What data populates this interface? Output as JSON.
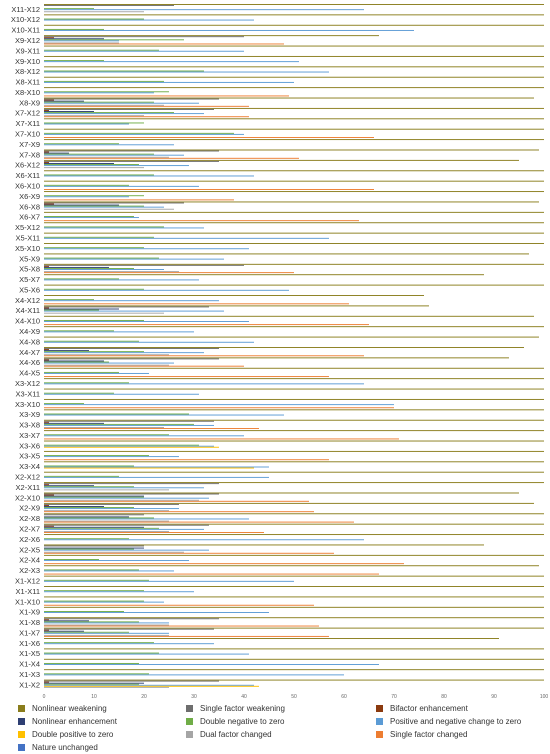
{
  "chart_data": {
    "type": "bar",
    "orientation": "horizontal",
    "xlim": [
      0,
      100
    ],
    "xticks": [
      "0",
      "10",
      "20",
      "30",
      "40",
      "50",
      "60",
      "70",
      "80",
      "90",
      "100"
    ],
    "grid": false,
    "legend_position": "bottom",
    "categories": [
      "X11-X12",
      "X10-X12",
      "X10-X11",
      "X9-X12",
      "X9-X11",
      "X9-X10",
      "X8-X12",
      "X8-X11",
      "X8-X10",
      "X8-X9",
      "X7-X12",
      "X7-X11",
      "X7-X10",
      "X7-X9",
      "X7-X8",
      "X6-X12",
      "X6-X11",
      "X6-X10",
      "X6-X9",
      "X6-X8",
      "X6-X7",
      "X5-X12",
      "X5-X11",
      "X5-X10",
      "X5-X9",
      "X5-X8",
      "X5-X7",
      "X5-X6",
      "X4-X12",
      "X4-X11",
      "X4-X10",
      "X4-X9",
      "X4-X8",
      "X4-X7",
      "X4-X6",
      "X4-X5",
      "X3-X12",
      "X3-X11",
      "X3-X10",
      "X3-X9",
      "X3-X8",
      "X3-X7",
      "X3-X6",
      "X3-X5",
      "X3-X4",
      "X2-X12",
      "X2-X11",
      "X2-X10",
      "X2-X9",
      "X2-X8",
      "X2-X7",
      "X2-X6",
      "X2-X5",
      "X2-X4",
      "X2-X3",
      "X1-X12",
      "X1-X11",
      "X1-X10",
      "X1-X9",
      "X1-X8",
      "X1-X7",
      "X1-X6",
      "X1-X5",
      "X1-X4",
      "X1-X3",
      "X1-X2"
    ],
    "series": [
      {
        "name": "Nonlinear  weakening",
        "color": "#8a7d1c",
        "values": [
          100,
          100,
          100,
          67,
          100,
          100,
          100,
          100,
          100,
          98,
          100,
          100,
          100,
          100,
          99,
          95,
          100,
          100,
          100,
          99,
          100,
          100,
          100,
          100,
          97,
          100,
          88,
          100,
          76,
          77,
          98,
          100,
          99,
          96,
          93,
          100,
          100,
          100,
          100,
          100,
          100,
          100,
          100,
          100,
          100,
          100,
          100,
          95,
          98,
          100,
          100,
          100,
          88,
          100,
          99,
          100,
          100,
          100,
          100,
          100,
          100,
          91,
          100,
          100,
          100,
          100
        ]
      },
      {
        "name": "Single factor weakening",
        "color": "#6e6e6e",
        "values": [
          26,
          0,
          0,
          40,
          0,
          0,
          0,
          0,
          0,
          35,
          34,
          0,
          0,
          0,
          35,
          35,
          0,
          0,
          0,
          28,
          0,
          0,
          0,
          0,
          0,
          40,
          0,
          0,
          0,
          33,
          0,
          0,
          0,
          35,
          35,
          0,
          0,
          0,
          0,
          0,
          34,
          0,
          0,
          0,
          0,
          0,
          35,
          35,
          27,
          20,
          33,
          0,
          20,
          0,
          0,
          0,
          0,
          0,
          0,
          35,
          34,
          0,
          0,
          0,
          0,
          35
        ]
      },
      {
        "name": "Bifactor enhancement",
        "color": "#8b3a0f",
        "values": [
          0,
          0,
          0,
          2,
          0,
          0,
          0,
          0,
          0,
          2,
          1,
          0,
          0,
          0,
          1,
          1,
          0,
          0,
          0,
          2,
          0,
          0,
          0,
          0,
          0,
          1,
          0,
          0,
          0,
          1,
          0,
          0,
          0,
          1,
          1,
          0,
          0,
          0,
          0,
          0,
          1,
          0,
          0,
          0,
          0,
          0,
          1,
          2,
          1,
          0,
          2,
          0,
          0,
          0,
          0,
          0,
          0,
          0,
          0,
          1,
          1,
          0,
          0,
          0,
          0,
          1
        ]
      },
      {
        "name": "Nonlinear enhancement",
        "color": "#2e3f73",
        "values": [
          0,
          0,
          0,
          12,
          0,
          0,
          0,
          0,
          0,
          8,
          10,
          0,
          0,
          0,
          5,
          14,
          0,
          0,
          0,
          15,
          0,
          0,
          0,
          0,
          0,
          13,
          0,
          0,
          0,
          15,
          0,
          0,
          0,
          9,
          12,
          0,
          0,
          0,
          0,
          0,
          12,
          0,
          0,
          0,
          0,
          0,
          10,
          20,
          12,
          17,
          20,
          0,
          20,
          0,
          0,
          0,
          0,
          0,
          0,
          9,
          8,
          0,
          0,
          0,
          0,
          20
        ]
      },
      {
        "name": "Double negative to zero",
        "color": "#70ad47",
        "values": [
          10,
          20,
          12,
          28,
          23,
          12,
          32,
          24,
          25,
          22,
          26,
          20,
          38,
          15,
          22,
          19,
          22,
          17,
          20,
          20,
          18,
          24,
          22,
          20,
          23,
          18,
          15,
          20,
          10,
          11,
          20,
          14,
          19,
          20,
          13,
          15,
          17,
          14,
          8,
          29,
          30,
          25,
          31,
          21,
          18,
          15,
          18,
          20,
          18,
          22,
          23,
          17,
          18,
          11,
          19,
          21,
          20,
          20,
          16,
          19,
          17,
          22,
          23,
          19,
          21,
          19
        ]
      },
      {
        "name": "Positive and negative change to zero",
        "color": "#5b9bd5",
        "values": [
          64,
          42,
          74,
          15,
          40,
          51,
          57,
          50,
          22,
          31,
          32,
          17,
          40,
          26,
          28,
          29,
          42,
          31,
          17,
          24,
          19,
          32,
          57,
          41,
          36,
          24,
          31,
          49,
          35,
          36,
          41,
          30,
          42,
          32,
          26,
          21,
          64,
          31,
          70,
          48,
          34,
          40,
          34,
          27,
          45,
          45,
          32,
          33,
          27,
          41,
          32,
          64,
          33,
          29,
          26,
          50,
          30,
          24,
          45,
          25,
          25,
          34,
          41,
          67,
          60,
          42
        ]
      },
      {
        "name": "Double positive to zero",
        "color": "#ffc000",
        "values": [
          0,
          0,
          0,
          0,
          0,
          0,
          0,
          0,
          0,
          0,
          0,
          0,
          0,
          0,
          0,
          0,
          0,
          0,
          0,
          0,
          0,
          0,
          0,
          0,
          0,
          0,
          0,
          0,
          0,
          0,
          0,
          0,
          0,
          0,
          0,
          0,
          0,
          0,
          0,
          0,
          0,
          0,
          35,
          0,
          42,
          0,
          0,
          0,
          0,
          0,
          0,
          0,
          0,
          0,
          0,
          0,
          0,
          0,
          0,
          0,
          0,
          0,
          0,
          0,
          0,
          43
        ]
      },
      {
        "name": "Dual factor changed",
        "color": "#a5a5a5",
        "values": [
          20,
          0,
          0,
          15,
          0,
          0,
          0,
          0,
          0,
          24,
          20,
          0,
          0,
          0,
          25,
          20,
          0,
          0,
          0,
          26,
          0,
          0,
          0,
          0,
          0,
          27,
          0,
          0,
          0,
          24,
          0,
          0,
          0,
          25,
          25,
          0,
          0,
          0,
          0,
          0,
          24,
          0,
          0,
          0,
          0,
          0,
          25,
          31,
          25,
          25,
          25,
          0,
          28,
          0,
          0,
          0,
          0,
          0,
          0,
          25,
          25,
          0,
          0,
          0,
          0,
          25
        ]
      },
      {
        "name": "Single factor changed",
        "color": "#ed7d31",
        "values": [
          0,
          0,
          0,
          48,
          0,
          0,
          0,
          0,
          49,
          41,
          41,
          0,
          66,
          0,
          51,
          0,
          0,
          66,
          38,
          0,
          63,
          0,
          0,
          0,
          0,
          50,
          0,
          0,
          61,
          0,
          65,
          0,
          0,
          64,
          40,
          57,
          0,
          0,
          70,
          0,
          43,
          71,
          0,
          57,
          0,
          0,
          0,
          53,
          54,
          62,
          44,
          0,
          58,
          72,
          67,
          0,
          0,
          54,
          0,
          55,
          57,
          0,
          0,
          0,
          0,
          0
        ]
      },
      {
        "name": "Nature unchanged",
        "color": "#4472c4",
        "values": [
          0,
          0,
          0,
          0,
          0,
          0,
          0,
          0,
          0,
          0,
          0,
          0,
          0,
          0,
          0,
          0,
          0,
          0,
          0,
          0,
          0,
          0,
          0,
          0,
          0,
          0,
          0,
          0,
          0,
          0,
          0,
          0,
          0,
          0,
          0,
          0,
          0,
          0,
          0,
          0,
          0,
          0,
          0,
          0,
          0,
          0,
          0,
          0,
          0,
          0,
          0,
          0,
          0,
          0,
          0,
          0,
          0,
          0,
          0,
          0,
          0,
          0,
          0,
          0,
          0,
          0
        ]
      }
    ]
  }
}
